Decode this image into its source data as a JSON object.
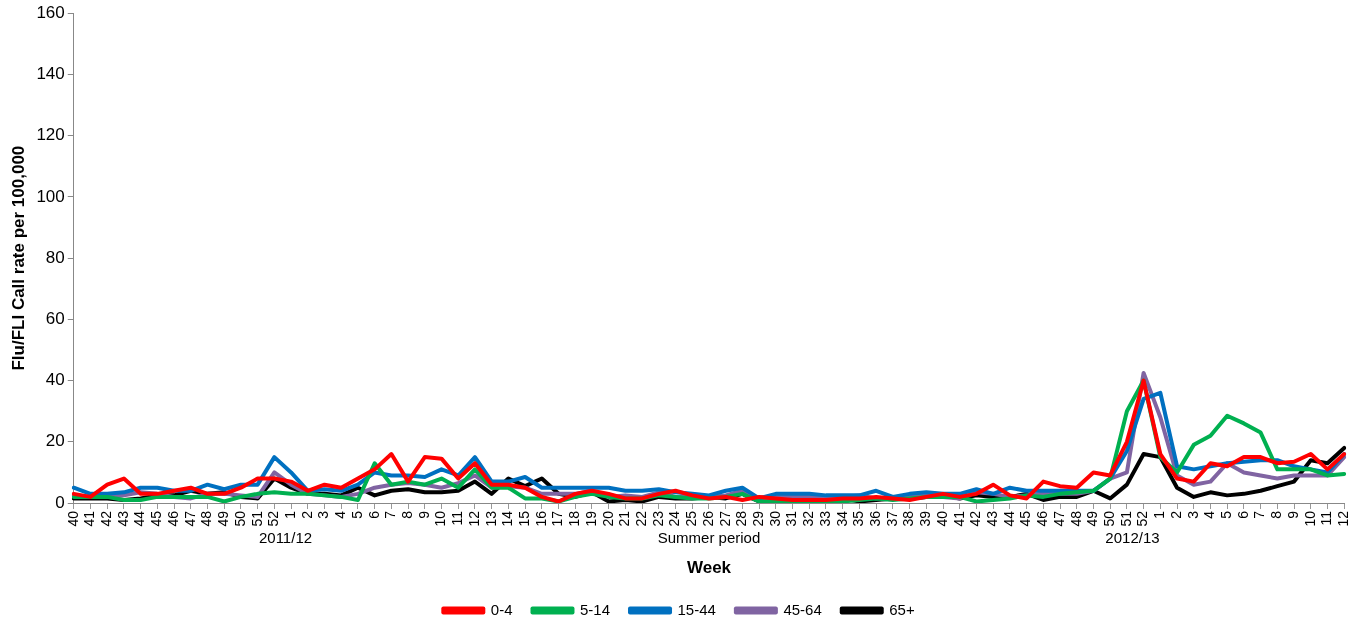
{
  "chart_data": {
    "type": "line",
    "ylabel": "Flu/FLI Call rate per 100,000",
    "xlabel": "Week",
    "categories": [
      "40",
      "41",
      "42",
      "43",
      "44",
      "45",
      "46",
      "47",
      "48",
      "49",
      "50",
      "51",
      "52",
      "1",
      "2",
      "3",
      "4",
      "5",
      "6",
      "7",
      "8",
      "9",
      "10",
      "11",
      "12",
      "13",
      "14",
      "15",
      "16",
      "17",
      "18",
      "19",
      "20",
      "21",
      "22",
      "23",
      "24",
      "25",
      "26",
      "27",
      "28",
      "29",
      "30",
      "31",
      "32",
      "33",
      "34",
      "35",
      "36",
      "37",
      "38",
      "39",
      "40",
      "41",
      "42",
      "43",
      "44",
      "45",
      "46",
      "47",
      "48",
      "49",
      "50",
      "51",
      "52",
      "1",
      "2",
      "3",
      "4",
      "5",
      "6",
      "7",
      "8",
      "9",
      "10",
      "11",
      "12"
    ],
    "series": [
      {
        "name": "0-4",
        "color": "#ff0000",
        "values": [
          3,
          2,
          6,
          8,
          3,
          3,
          4,
          5,
          3,
          3,
          5,
          8,
          8,
          7,
          4,
          6,
          5,
          8,
          11,
          16,
          7,
          15,
          14.5,
          8,
          13,
          6,
          6,
          5,
          2,
          0.5,
          3,
          4,
          3,
          1.5,
          1.5,
          3,
          4,
          2.5,
          1.5,
          2,
          1,
          2,
          1.5,
          1,
          1,
          1,
          1.5,
          1.5,
          2,
          1.5,
          1,
          2,
          3,
          2,
          3,
          6,
          2.5,
          1.5,
          7,
          5.5,
          5,
          10,
          9,
          20,
          40,
          16,
          8,
          7,
          13,
          12,
          15,
          15,
          13,
          13.5,
          16,
          11,
          16
        ]
      },
      {
        "name": "5-14",
        "color": "#00b050",
        "values": [
          2,
          2,
          2,
          1,
          1,
          2,
          2,
          2,
          2,
          0.5,
          2,
          3,
          3.5,
          3,
          3,
          2.5,
          2,
          1,
          13,
          6,
          7,
          6,
          8,
          5,
          11,
          5,
          5,
          1.5,
          1.5,
          0.5,
          2,
          3,
          2,
          1.5,
          1.5,
          2.5,
          2,
          1.5,
          1.5,
          2,
          3,
          0.5,
          0.5,
          0,
          0,
          0,
          0.5,
          1,
          1.5,
          1,
          1.5,
          2,
          2,
          2,
          0.5,
          1,
          1.5,
          2.5,
          2,
          3,
          3.5,
          4,
          8,
          30,
          40,
          15,
          10,
          19,
          22,
          28.5,
          26,
          23,
          11,
          11,
          11,
          9,
          9.5
        ]
      },
      {
        "name": "15-44",
        "color": "#0070c0",
        "values": [
          5,
          3,
          3,
          3.5,
          5,
          5,
          4,
          4,
          6,
          4.5,
          6,
          6,
          15,
          10,
          4,
          4.5,
          4,
          6,
          10,
          9,
          9,
          8.5,
          11,
          9,
          15,
          7,
          7,
          8.5,
          5,
          5,
          5,
          5,
          5,
          4,
          4,
          4.5,
          3.5,
          3,
          2.5,
          4,
          5,
          1.5,
          3,
          3,
          3,
          2.5,
          2.5,
          2.5,
          4,
          2,
          3,
          3.5,
          3,
          3,
          4.5,
          3,
          5,
          4,
          4,
          4,
          4,
          4,
          8,
          17,
          34,
          36,
          12,
          11,
          12,
          13,
          13.5,
          14,
          14,
          12,
          11,
          10,
          16
        ]
      },
      {
        "name": "45-64",
        "color": "#8064a2",
        "values": [
          2.5,
          2,
          2,
          2.5,
          3.5,
          3,
          2,
          1.5,
          3,
          3,
          2.5,
          2,
          10,
          6,
          3,
          2.5,
          2,
          3,
          5,
          6,
          6.5,
          6,
          5,
          6.5,
          9,
          5,
          5.5,
          5,
          3,
          3,
          3,
          4,
          2,
          2.5,
          2,
          3.5,
          2,
          2,
          2,
          2.5,
          4,
          1,
          2,
          2,
          2,
          2,
          2,
          2.5,
          1.5,
          2,
          2,
          3,
          2,
          1.5,
          3.5,
          3,
          2,
          2.5,
          3,
          3,
          3,
          4,
          8,
          10,
          42.5,
          28,
          9,
          6,
          7,
          13,
          10,
          9,
          8,
          9,
          9,
          9,
          15
        ]
      },
      {
        "name": "65+",
        "color": "#000000",
        "values": [
          1.5,
          1.5,
          1.5,
          1,
          1.5,
          2.5,
          2.5,
          4,
          3,
          3.5,
          2,
          1.5,
          8,
          5,
          3,
          3,
          2.5,
          5,
          2.5,
          4,
          4.5,
          3.5,
          3.5,
          4,
          7,
          3,
          8,
          5.5,
          8,
          3,
          2,
          3.5,
          0.5,
          1,
          0.5,
          2,
          1.5,
          1.5,
          2,
          1.5,
          3,
          0.5,
          1,
          1,
          1,
          1,
          1.5,
          0.5,
          1,
          1.5,
          1.5,
          2,
          2.5,
          1.5,
          2.5,
          2,
          2,
          3,
          1,
          2,
          2,
          4,
          1.5,
          6,
          16,
          15,
          5,
          2,
          3.5,
          2.5,
          3,
          4,
          5.5,
          7,
          14,
          13,
          18
        ]
      }
    ],
    "ylim": [
      0,
      160
    ],
    "yticks": [
      0,
      20,
      40,
      60,
      80,
      100,
      120,
      140,
      160
    ],
    "legend": "bottom",
    "marker": "none",
    "line_style": "solid",
    "annotations": [
      "2011/12",
      "Summer period",
      "2012/13"
    ]
  }
}
